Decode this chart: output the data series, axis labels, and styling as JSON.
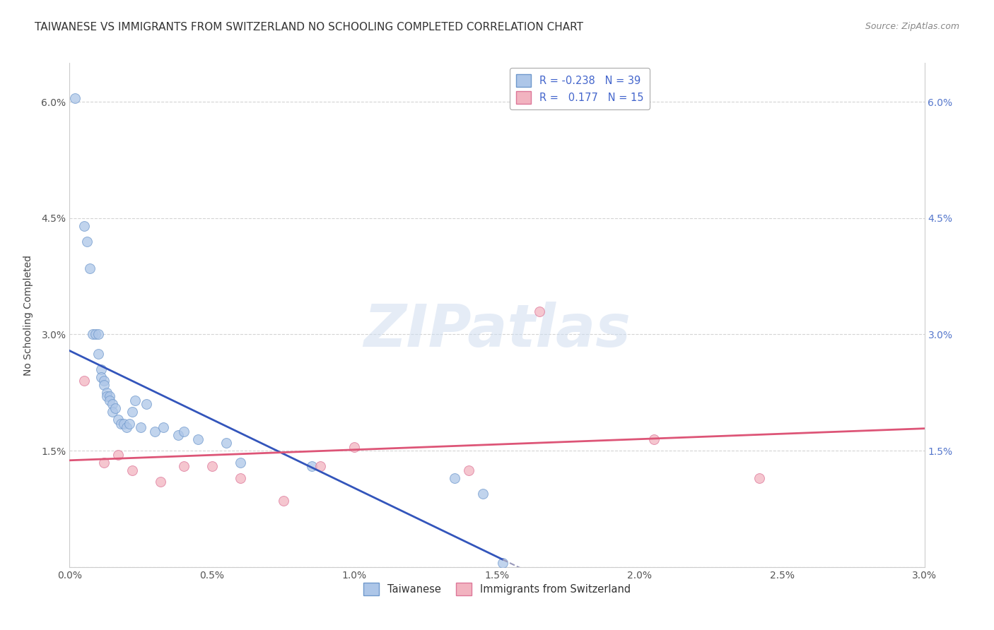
{
  "title": "TAIWANESE VS IMMIGRANTS FROM SWITZERLAND NO SCHOOLING COMPLETED CORRELATION CHART",
  "source": "Source: ZipAtlas.com",
  "ylabel": "No Schooling Completed",
  "x_ticks": [
    0.0,
    0.5,
    1.0,
    1.5,
    2.0,
    2.5,
    3.0
  ],
  "x_tick_labels": [
    "0.0%",
    "0.5%",
    "1.0%",
    "1.5%",
    "2.0%",
    "2.5%",
    "3.0%"
  ],
  "y_ticks_left": [
    0.0,
    1.5,
    3.0,
    4.5,
    6.0
  ],
  "y_tick_labels_left": [
    "",
    "1.5%",
    "3.0%",
    "4.5%",
    "6.0%"
  ],
  "y_ticks_right": [
    0.0,
    1.5,
    3.0,
    4.5,
    6.0
  ],
  "y_tick_labels_right": [
    "",
    "1.5%",
    "3.0%",
    "4.5%",
    "6.0%"
  ],
  "xlim": [
    0.0,
    3.0
  ],
  "ylim": [
    0.0,
    6.5
  ],
  "background_color": "#ffffff",
  "grid_color": "#d0d0d0",
  "taiwanese_color": "#adc6e8",
  "swiss_color": "#f2b3c0",
  "taiwanese_edge": "#7099cc",
  "swiss_edge": "#dd7799",
  "blue_line_color": "#3355bb",
  "pink_line_color": "#dd5577",
  "dashed_line_color": "#9999bb",
  "legend_taiwanese_label": "R = -0.238   N = 39",
  "legend_swiss_label": "R =   0.177   N = 15",
  "taiwanese_x": [
    0.02,
    0.05,
    0.06,
    0.07,
    0.08,
    0.09,
    0.1,
    0.1,
    0.11,
    0.11,
    0.12,
    0.12,
    0.13,
    0.13,
    0.14,
    0.14,
    0.15,
    0.15,
    0.16,
    0.17,
    0.18,
    0.19,
    0.2,
    0.21,
    0.22,
    0.23,
    0.25,
    0.27,
    0.3,
    0.33,
    0.38,
    0.4,
    0.45,
    0.55,
    0.6,
    0.85,
    1.35,
    1.45,
    1.52
  ],
  "taiwanese_y": [
    6.05,
    4.4,
    4.2,
    3.85,
    3.0,
    3.0,
    3.0,
    2.75,
    2.55,
    2.45,
    2.4,
    2.35,
    2.25,
    2.2,
    2.2,
    2.15,
    2.1,
    2.0,
    2.05,
    1.9,
    1.85,
    1.85,
    1.8,
    1.85,
    2.0,
    2.15,
    1.8,
    2.1,
    1.75,
    1.8,
    1.7,
    1.75,
    1.65,
    1.6,
    1.35,
    1.3,
    1.15,
    0.95,
    0.05
  ],
  "swiss_x": [
    0.05,
    0.12,
    0.17,
    0.22,
    0.32,
    0.4,
    0.5,
    0.6,
    0.75,
    0.88,
    1.0,
    1.4,
    1.65,
    2.05,
    2.42
  ],
  "swiss_y": [
    2.4,
    1.35,
    1.45,
    1.25,
    1.1,
    1.3,
    1.3,
    1.15,
    0.85,
    1.3,
    1.55,
    1.25,
    3.3,
    1.65,
    1.15
  ],
  "blue_line_start_x": 0.0,
  "blue_line_solid_end_x": 1.52,
  "blue_line_dashed_end_x": 2.1,
  "pink_line_start_x": 0.0,
  "pink_line_end_x": 3.0,
  "watermark_text": "ZIPatlas",
  "bottom_legend_taiwanese": "Taiwanese",
  "bottom_legend_swiss": "Immigrants from Switzerland",
  "title_fontsize": 11,
  "axis_label_fontsize": 10,
  "tick_fontsize": 10,
  "legend_fontsize": 10.5,
  "marker_size": 100,
  "marker_alpha": 0.75
}
